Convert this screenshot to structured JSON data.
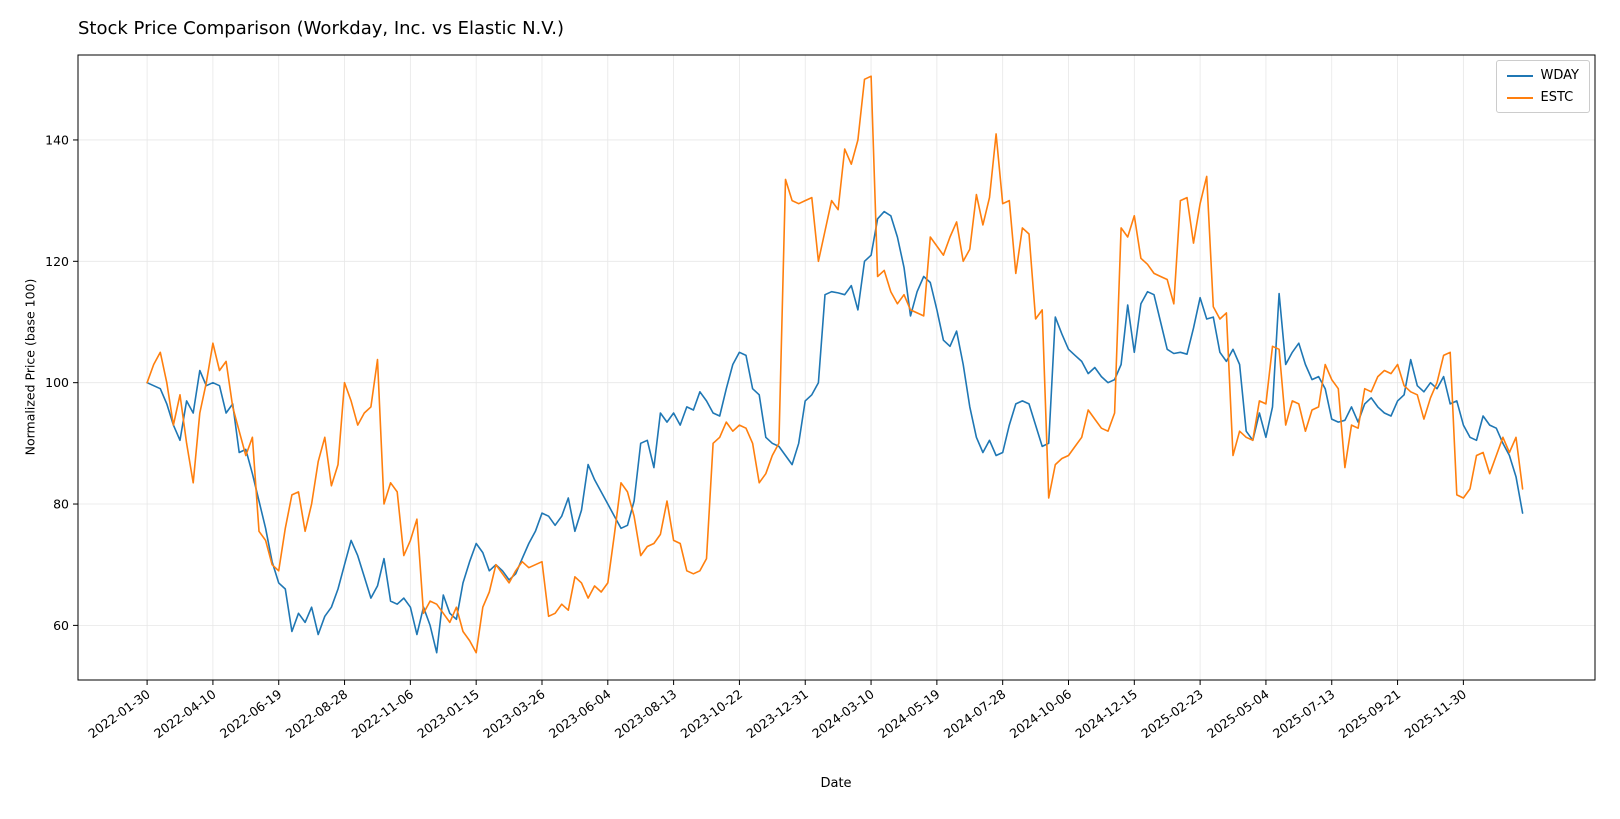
{
  "chart_data": {
    "type": "line",
    "title": "Stock Price Comparison (Workday, Inc. vs Elastic N.V.)",
    "xlabel": "Date",
    "ylabel": "Normalized Price (base 100)",
    "x_description": "weekly samples, index 0 = 2022-01-30",
    "x_tick_positions": [
      0,
      10,
      20,
      30,
      40,
      50,
      60,
      70,
      80,
      90,
      100,
      110,
      120,
      130,
      140,
      150,
      160,
      170,
      180,
      190,
      200
    ],
    "x_tick_labels": [
      "2022-01-30",
      "2022-04-10",
      "2022-06-19",
      "2022-08-28",
      "2022-11-06",
      "2023-01-15",
      "2023-03-26",
      "2023-06-04",
      "2023-08-13",
      "2023-10-22",
      "2023-12-31",
      "2024-03-10",
      "2024-05-19",
      "2024-07-28",
      "2024-10-06",
      "2024-12-15",
      "2025-02-23",
      "2025-05-04",
      "2025-07-13",
      "2025-09-21",
      "2025-11-30"
    ],
    "y_ticks": [
      60,
      80,
      100,
      120,
      140
    ],
    "xlim": [
      -10.5,
      220
    ],
    "ylim": [
      51,
      154
    ],
    "grid": true,
    "legend_position": "upper right",
    "series": [
      {
        "name": "WDAY",
        "color": "#1f77b4",
        "values": [
          100,
          99.5,
          99,
          96.5,
          93,
          90.5,
          97,
          95,
          102,
          99.5,
          100,
          99.5,
          95,
          96.5,
          88.5,
          89,
          85,
          80.5,
          76,
          70.5,
          67,
          66,
          59,
          62,
          60.5,
          63,
          58.5,
          61.5,
          63,
          66,
          70,
          74,
          71.5,
          68,
          64.5,
          66.5,
          71,
          64,
          63.5,
          64.5,
          63,
          58.5,
          63,
          60,
          55.5,
          65,
          62,
          61,
          67,
          70.5,
          73.5,
          72,
          69,
          70,
          69,
          67.5,
          68.5,
          71,
          73.5,
          75.5,
          78.5,
          78,
          76.5,
          78,
          81,
          75.5,
          79,
          86.5,
          84,
          82,
          80,
          78,
          76,
          76.5,
          80.5,
          90,
          90.5,
          86,
          95,
          93.5,
          95,
          93,
          96,
          95.5,
          98.5,
          97,
          95,
          94.5,
          99,
          103,
          105,
          104.5,
          99,
          98,
          91,
          90,
          89.5,
          88,
          86.5,
          90,
          97,
          98,
          100,
          114.5,
          115,
          114.8,
          114.5,
          116,
          112,
          120,
          121,
          127,
          128.2,
          127.5,
          124,
          119,
          111,
          115,
          117.5,
          116.5,
          112,
          107,
          106,
          108.5,
          103,
          96,
          91,
          88.5,
          90.5,
          88,
          88.5,
          93,
          96.5,
          97,
          96.5,
          93,
          89.5,
          90,
          110.8,
          108,
          105.5,
          104.5,
          103.5,
          101.5,
          102.5,
          101,
          100,
          100.5,
          103,
          112.8,
          105,
          113,
          115,
          114.5,
          110,
          105.5,
          104.8,
          105,
          104.7,
          109,
          114,
          110.5,
          110.8,
          105,
          103.5,
          105.5,
          103,
          92,
          90.5,
          95,
          91,
          96,
          114.7,
          103,
          105,
          106.5,
          103,
          100.5,
          101,
          99,
          94,
          93.5,
          93.8,
          96,
          93.5,
          96.5,
          97.5,
          96,
          95,
          94.5,
          97,
          98,
          103.8,
          99.5,
          98.5,
          100,
          99,
          101,
          96.5,
          97,
          93,
          91,
          90.5,
          94.5,
          93,
          92.5,
          90,
          88,
          84.5,
          78.5
        ]
      },
      {
        "name": "ESTC",
        "color": "#ff7f0e",
        "values": [
          100,
          103,
          105,
          100,
          93,
          98,
          90,
          83.5,
          95,
          100,
          106.5,
          102,
          103.5,
          96,
          92,
          88,
          91,
          75.5,
          74,
          70,
          69,
          76,
          81.5,
          82,
          75.5,
          80,
          87,
          91,
          83,
          86.5,
          100,
          97,
          93,
          95,
          96,
          103.8,
          80,
          83.5,
          82,
          71.5,
          74,
          77.5,
          62,
          64,
          63.5,
          62,
          60.5,
          63,
          59,
          57.5,
          55.5,
          63,
          65.5,
          70,
          68.5,
          67,
          69,
          70.5,
          69.5,
          70,
          70.5,
          61.5,
          62,
          63.5,
          62.5,
          68,
          67,
          64.5,
          66.5,
          65.5,
          67,
          75,
          83.5,
          82,
          78,
          71.5,
          73,
          73.5,
          75,
          80.5,
          74,
          73.5,
          69,
          68.5,
          69,
          71,
          90,
          91,
          93.5,
          92,
          93,
          92.5,
          90,
          83.5,
          85,
          88,
          90,
          133.5,
          130,
          129.5,
          130,
          130.5,
          120,
          125,
          130,
          128.5,
          138.5,
          136,
          140,
          150,
          150.5,
          117.5,
          118.5,
          115,
          113,
          114.5,
          112,
          111.5,
          111,
          124,
          122.5,
          121,
          124,
          126.5,
          120,
          122,
          131,
          126,
          130.5,
          141,
          129.5,
          130,
          118,
          125.5,
          124.5,
          110.5,
          112,
          81,
          86.5,
          87.5,
          88,
          89.5,
          91,
          95.5,
          94,
          92.5,
          92,
          95,
          125.5,
          124,
          127.5,
          120.5,
          119.5,
          118,
          117.5,
          117,
          113,
          130,
          130.5,
          123,
          129.5,
          134,
          112.5,
          110.5,
          111.5,
          88,
          92,
          91,
          90.5,
          97,
          96.5,
          106,
          105.5,
          93,
          97,
          96.5,
          92,
          95.5,
          96,
          103,
          100.5,
          99,
          86,
          93,
          92.5,
          99,
          98.5,
          101,
          102,
          101.5,
          103,
          99.5,
          98.5,
          98,
          94,
          97.5,
          100,
          104.5,
          105,
          81.5,
          81,
          82.5,
          88,
          88.5,
          85,
          88,
          91,
          88.5,
          91,
          82.5
        ]
      }
    ]
  }
}
